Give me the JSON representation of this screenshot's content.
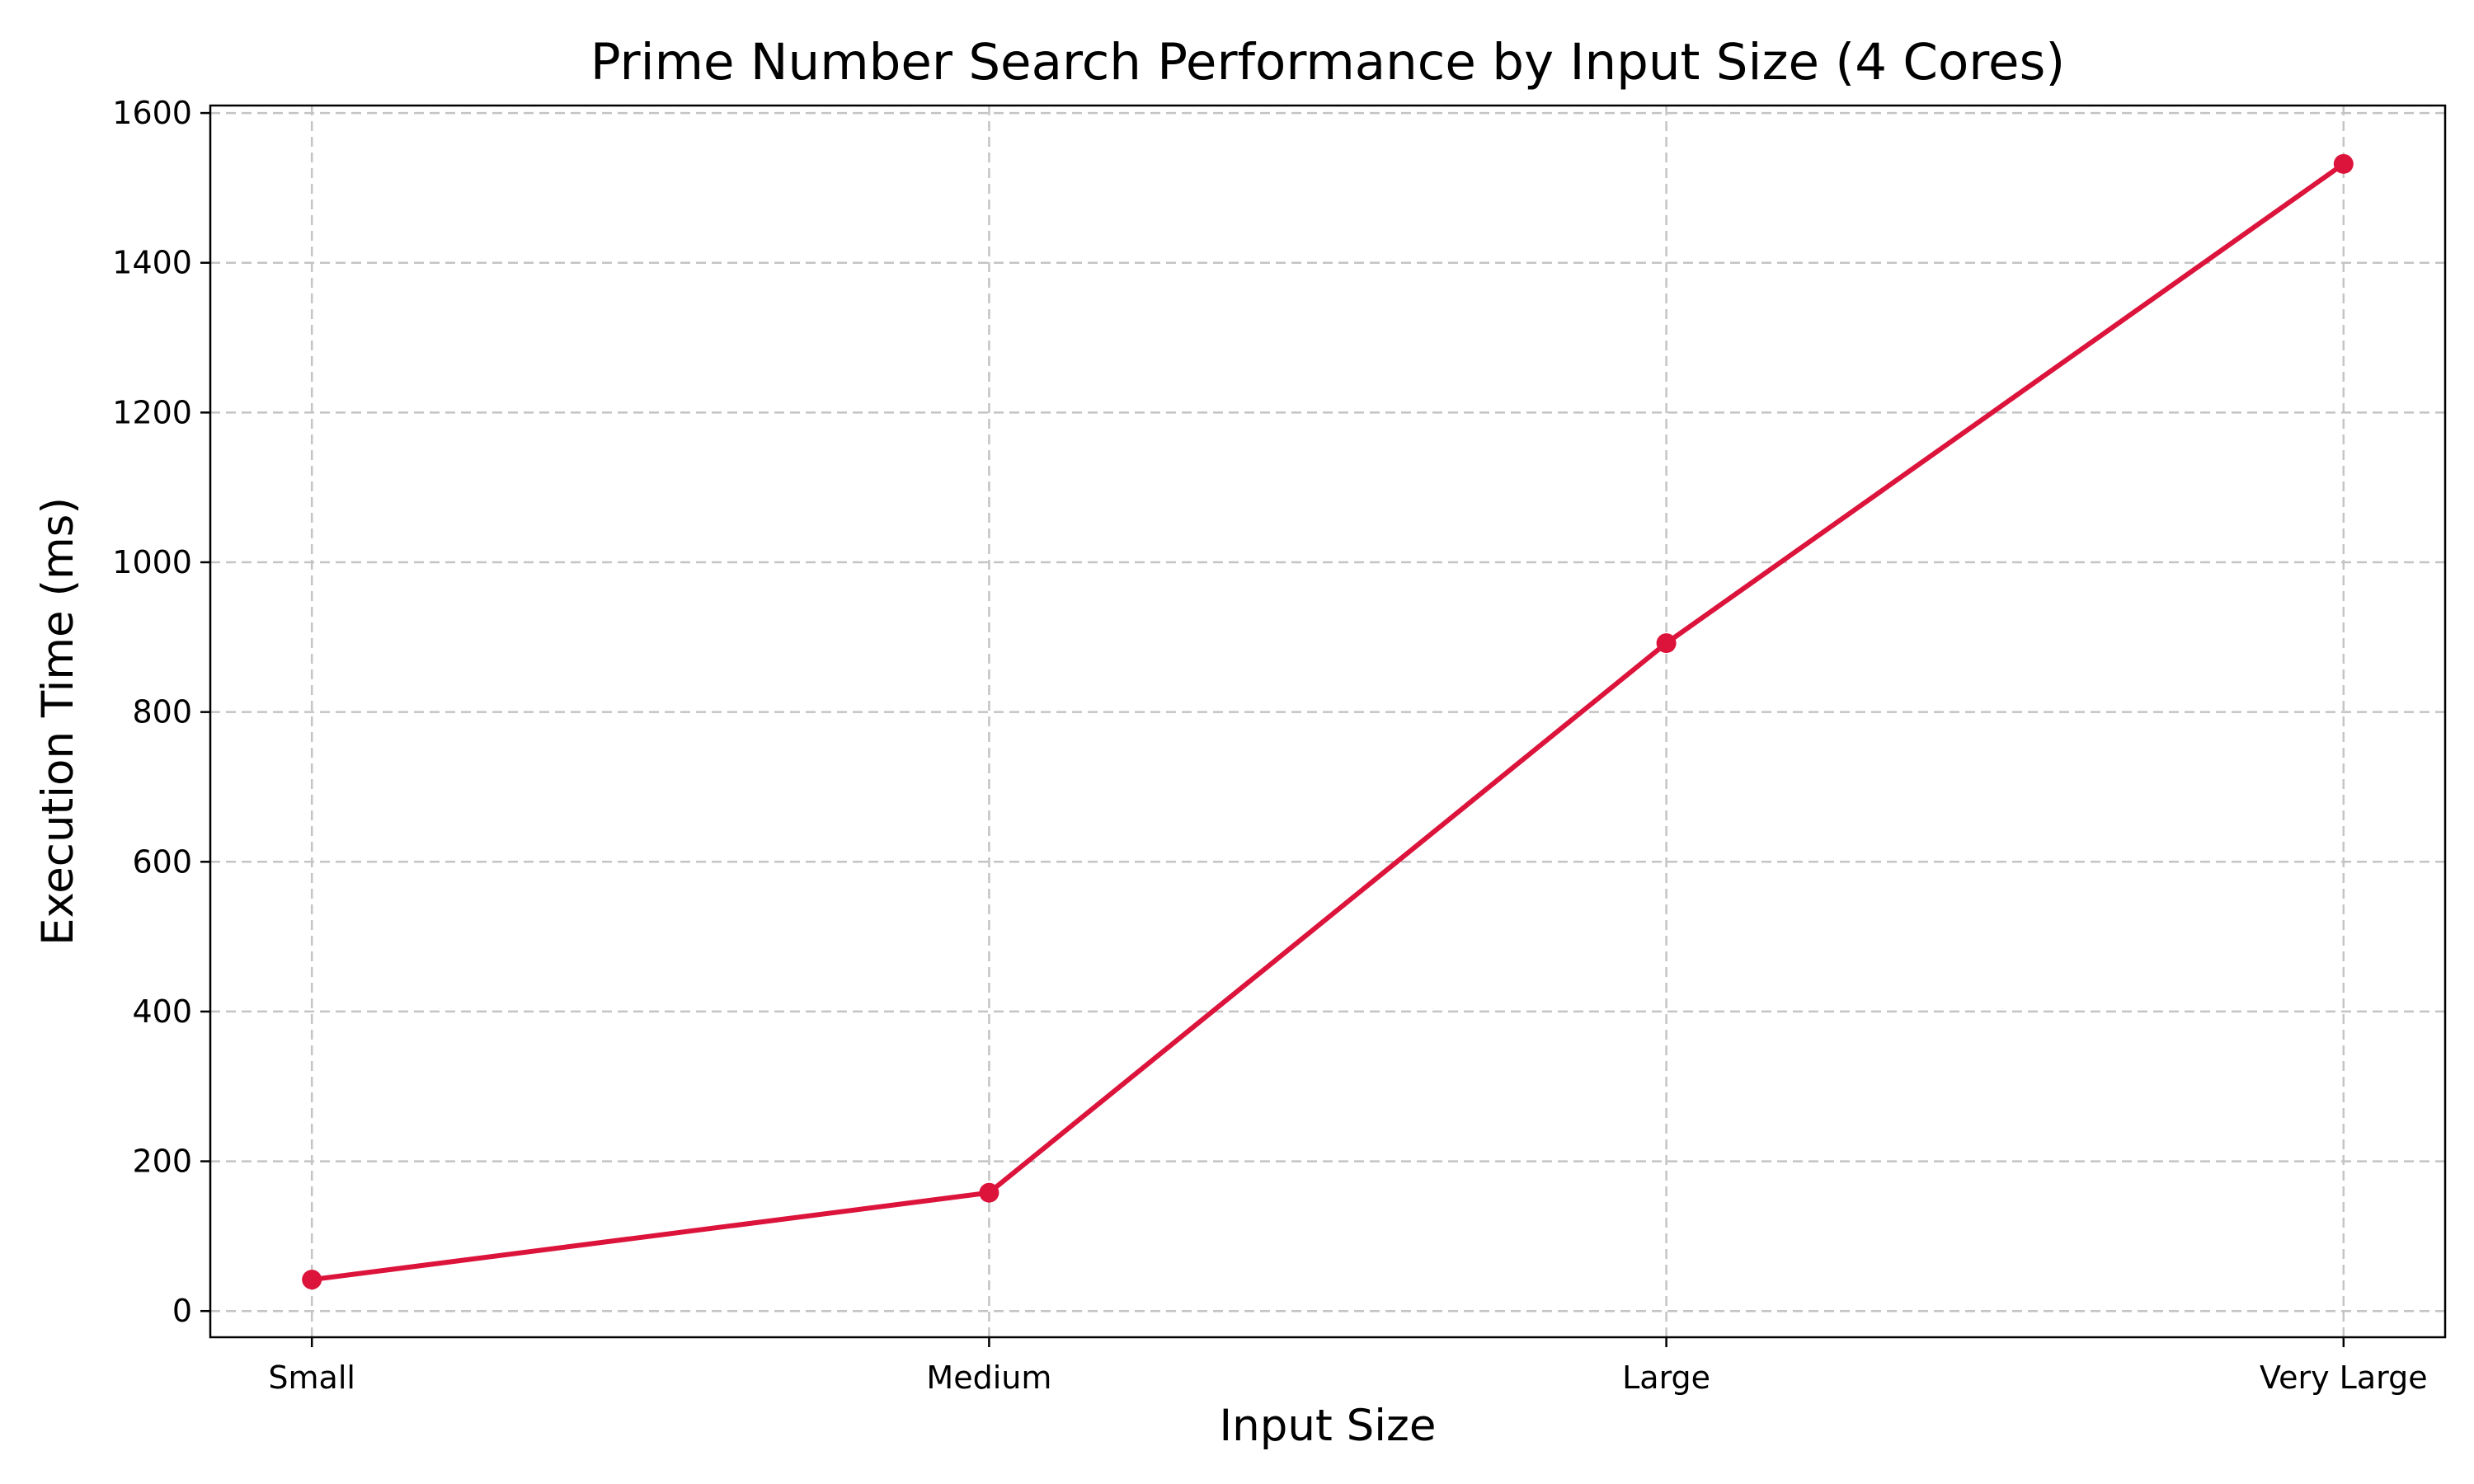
{
  "chart_data": {
    "type": "line",
    "title": "Prime Number Search Performance by Input Size (4 Cores)",
    "xlabel": "Input Size",
    "ylabel": "Execution Time (ms)",
    "categories": [
      "Small",
      "Medium",
      "Large",
      "Very Large"
    ],
    "series": [
      {
        "values": [
          42,
          158,
          892,
          1532
        ],
        "color": "#dc143c",
        "marker": "circle"
      }
    ],
    "ylim": [
      -35,
      1610
    ],
    "yticks": [
      0,
      200,
      400,
      600,
      800,
      1000,
      1200,
      1400,
      1600
    ],
    "ytick_labels": [
      "0",
      "200",
      "400",
      "600",
      "800",
      "1000",
      "1200",
      "1400",
      "1600"
    ],
    "grid": true,
    "legend": "none"
  }
}
